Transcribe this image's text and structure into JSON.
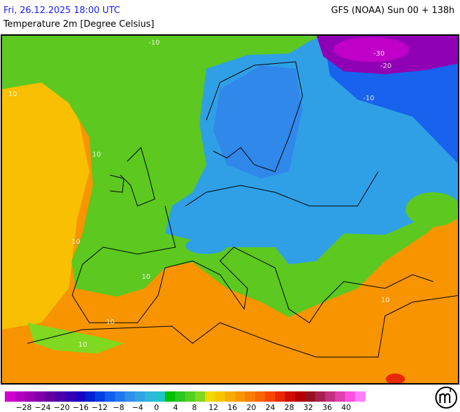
{
  "header": {
    "date": "Fri, 26.12.2025 18:00 UTC",
    "model": "GFS (NOAA) Sun 00 + 138h",
    "title": "Temperature 2m [Degree Celsius]"
  },
  "map": {
    "contour_labels": [
      "10",
      "-10",
      "10",
      "10",
      "10",
      "10",
      "10",
      "-30",
      "-20",
      "-10",
      "10"
    ]
  },
  "legend": {
    "colors": [
      "#d200d2",
      "#b400c3",
      "#9a00b4",
      "#8000aa",
      "#6400a0",
      "#4c00a8",
      "#3400b4",
      "#1c00c0",
      "#0020d2",
      "#0040e0",
      "#1060ee",
      "#2078f0",
      "#3090e8",
      "#30a4e0",
      "#30b8dc",
      "#20c4c8",
      "#00c000",
      "#28c820",
      "#50d020",
      "#80d820",
      "#f0d800",
      "#f8c400",
      "#f8ac00",
      "#f89600",
      "#f87e00",
      "#f86400",
      "#f84600",
      "#e82800",
      "#d00c00",
      "#b40000",
      "#961020",
      "#a82050",
      "#c43080",
      "#e040b0",
      "#ff50e0",
      "#ff80ff"
    ],
    "labels": [
      "−28",
      "−24",
      "−20",
      "−16",
      "−12",
      "−8",
      "−4",
      "0",
      "4",
      "8",
      "12",
      "16",
      "20",
      "24",
      "28",
      "32",
      "36",
      "40"
    ]
  }
}
